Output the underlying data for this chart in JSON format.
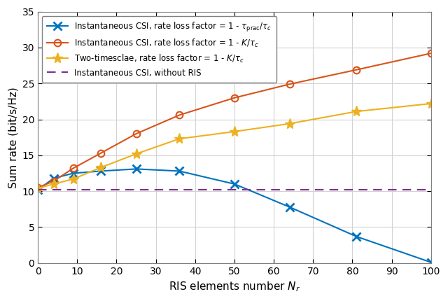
{
  "blue_x": [
    0,
    4,
    9,
    16,
    25,
    36,
    50,
    64,
    81,
    100
  ],
  "blue_y": [
    10.2,
    11.8,
    12.5,
    12.8,
    13.1,
    12.8,
    11.0,
    7.8,
    3.7,
    0.1
  ],
  "orange_x": [
    0,
    4,
    9,
    16,
    25,
    36,
    50,
    64,
    81,
    100
  ],
  "orange_y": [
    10.5,
    11.4,
    13.2,
    15.3,
    18.0,
    20.6,
    23.0,
    24.9,
    26.9,
    29.2
  ],
  "gold_x": [
    0,
    4,
    9,
    16,
    25,
    36,
    50,
    64,
    81,
    100
  ],
  "gold_y": [
    10.4,
    11.0,
    11.7,
    13.3,
    15.2,
    17.3,
    18.3,
    19.4,
    21.1,
    22.2
  ],
  "purple_y": 10.2,
  "blue_color": "#0072BD",
  "orange_color": "#D95319",
  "gold_color": "#EDB120",
  "purple_color": "#7E2F8E",
  "legend1": "Instantaneous CSI, rate loss factor = 1 - $\\tau_{\\mathrm{prac}}/\\tau_c$",
  "legend2": "Instantaneous CSI, rate loss factor = 1 - $K/\\tau_c$",
  "legend3": "Two-timesclae, rate loss factor = 1 - $K/\\tau_c$",
  "legend4": "Instantaneous CSI, without RIS",
  "xlabel": "RIS elements number $N_r$",
  "ylabel": "Sum rate (bit/s/Hz)",
  "xlim": [
    0,
    100
  ],
  "ylim": [
    0,
    35
  ],
  "xticks": [
    0,
    10,
    20,
    30,
    40,
    50,
    60,
    70,
    80,
    90,
    100
  ],
  "yticks": [
    0,
    5,
    10,
    15,
    20,
    25,
    30,
    35
  ]
}
